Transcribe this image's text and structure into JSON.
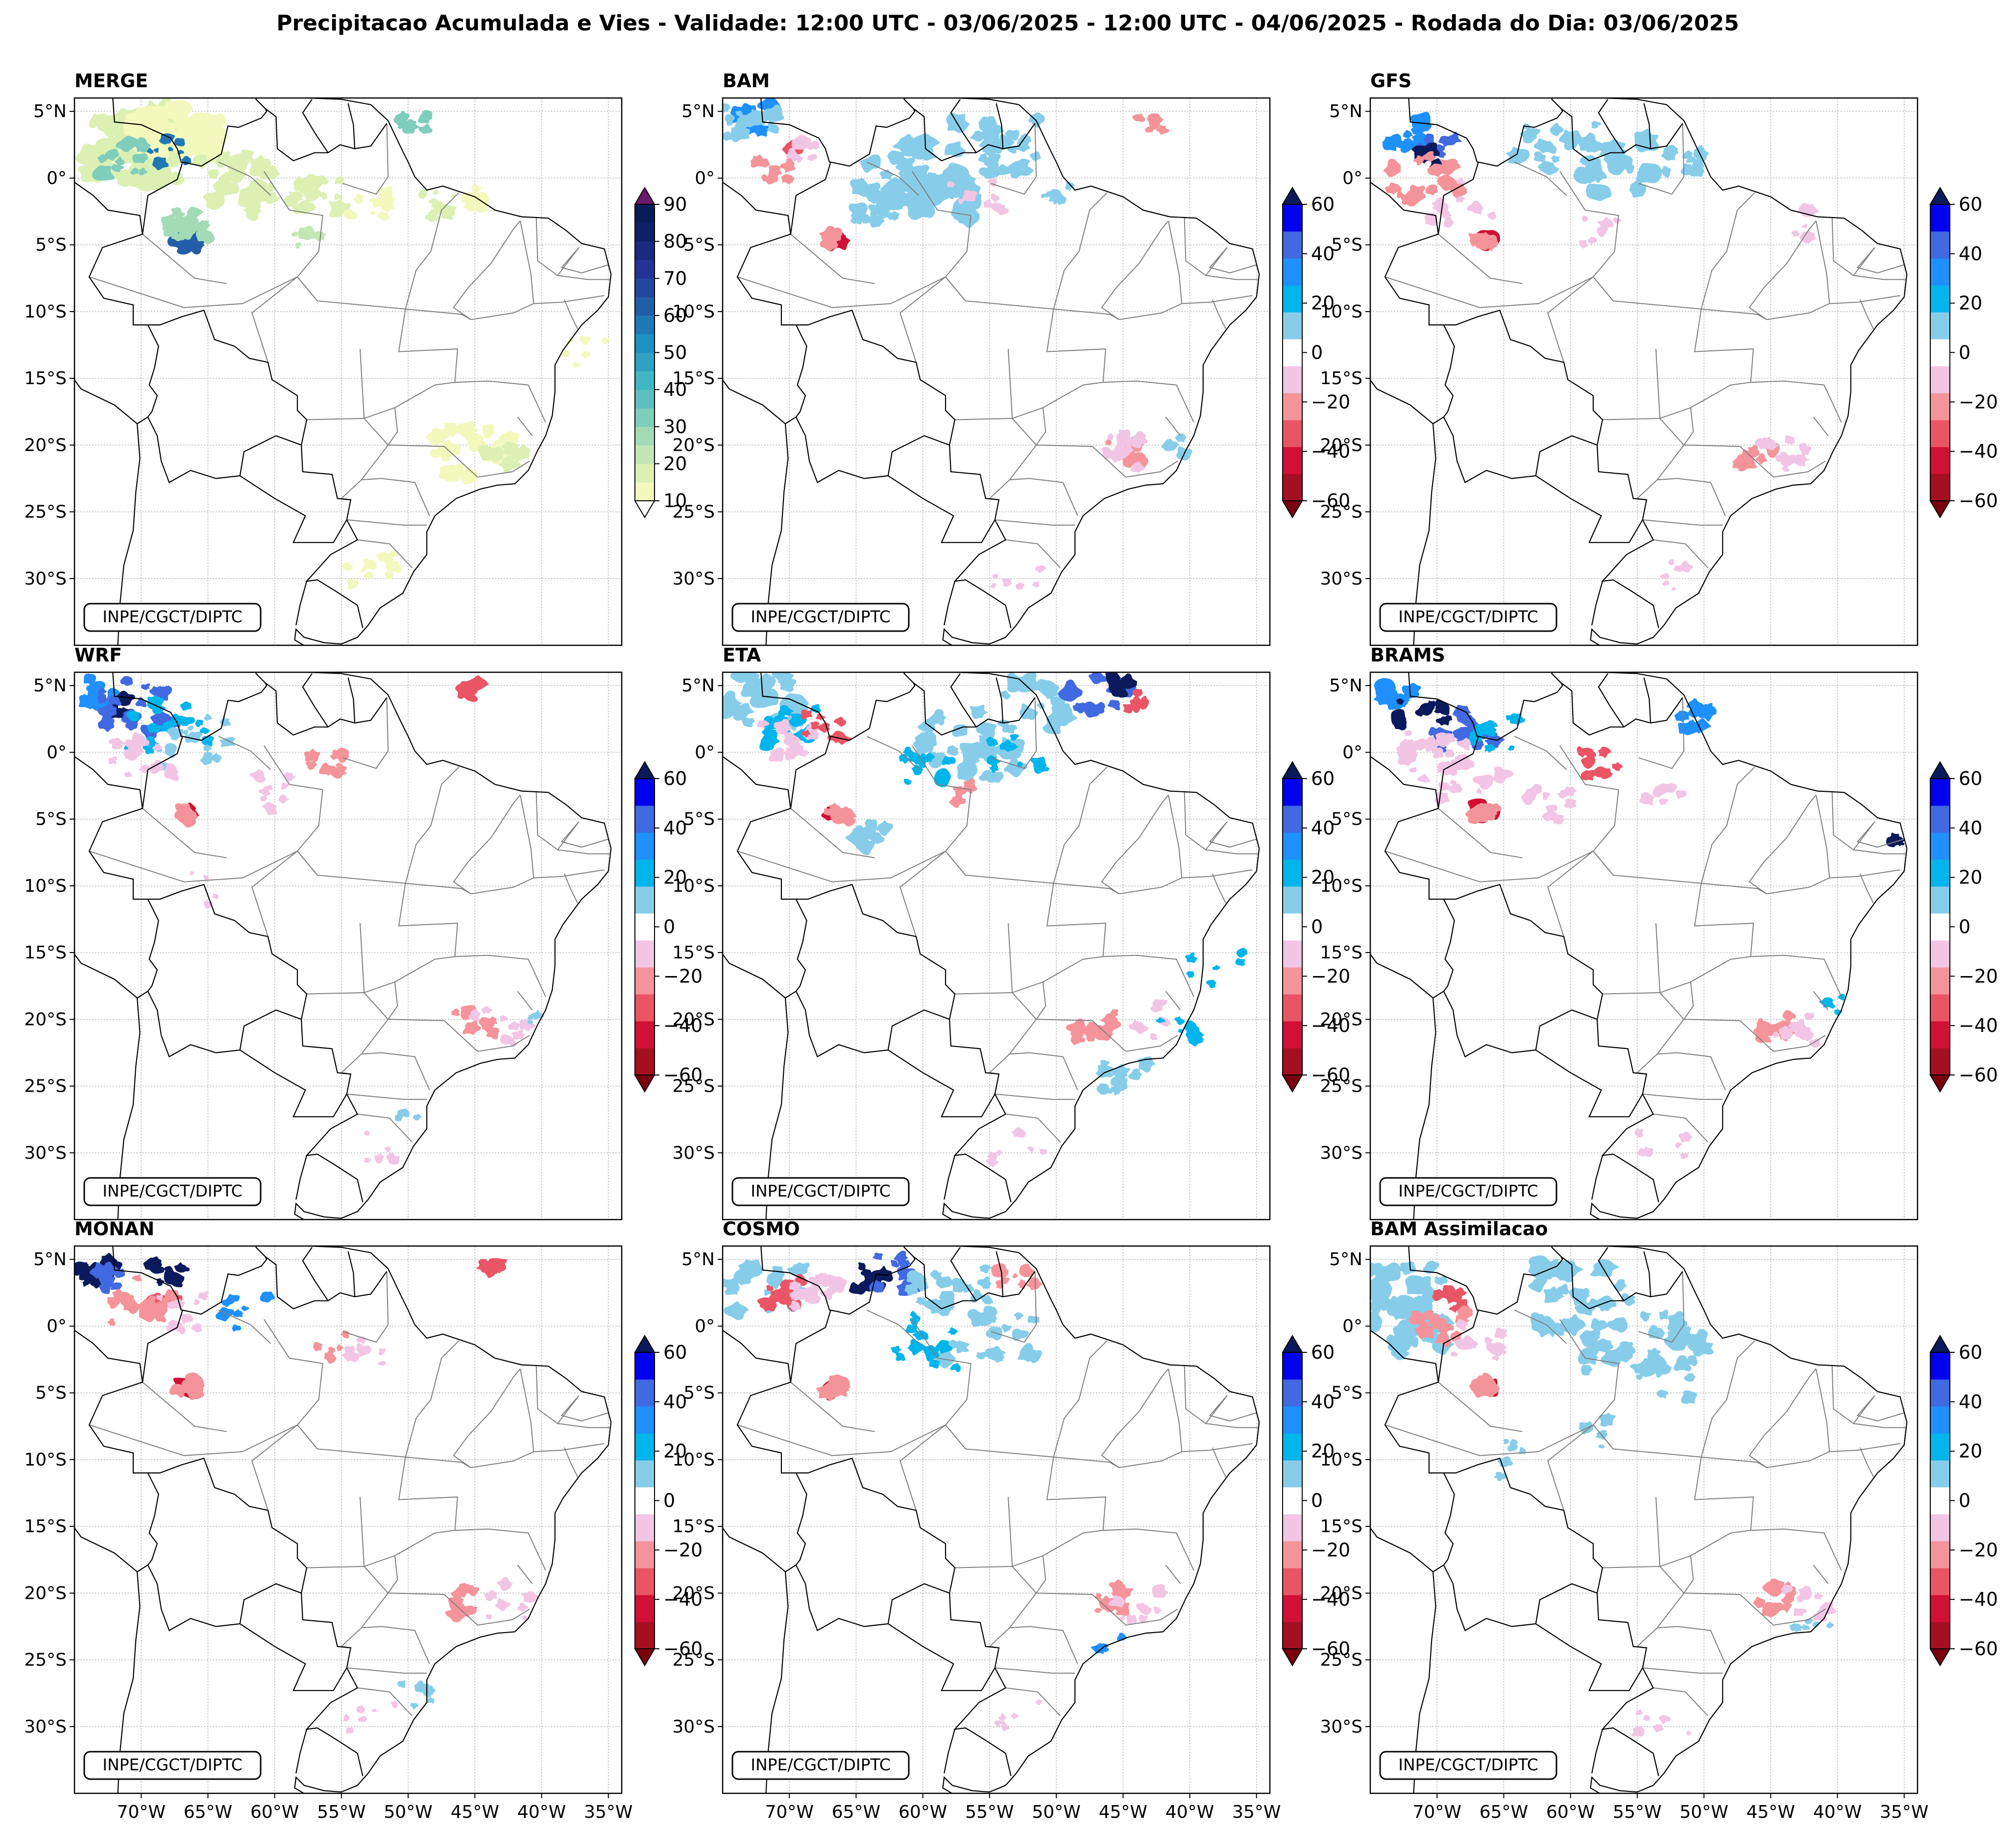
{
  "figure": {
    "title": "Precipitacao Acumulada e Vies - Validade: 12:00 UTC - 03/06/2025 - 12:00 UTC - 04/06/2025 - Rodada do Dia: 03/06/2025",
    "credit": "INPE/CGCT/DIPTC"
  },
  "axes": {
    "lat_ticks": [
      "5°N",
      "0°",
      "5°S",
      "10°S",
      "15°S",
      "20°S",
      "25°S",
      "30°S"
    ],
    "lat_values": [
      5,
      0,
      -5,
      -10,
      -15,
      -20,
      -25,
      -30
    ],
    "lon_ticks": [
      "70°W",
      "65°W",
      "60°W",
      "55°W",
      "50°W",
      "45°W",
      "40°W",
      "35°W"
    ],
    "lon_values": [
      -70,
      -65,
      -60,
      -55,
      -50,
      -45,
      -40,
      -35
    ],
    "lon_range": [
      -75,
      -34
    ],
    "lat_range": [
      -35,
      6
    ]
  },
  "colorbars": {
    "precip": {
      "ticks": [
        "90",
        "80",
        "70",
        "60",
        "50",
        "40",
        "30",
        "20",
        "10"
      ],
      "levels": [
        10,
        15,
        20,
        25,
        30,
        35,
        40,
        45,
        50,
        55,
        60,
        65,
        70,
        75,
        80,
        85,
        90
      ],
      "colors": [
        "#f3f8bd",
        "#dbf0b2",
        "#c2e6b4",
        "#a3dbb7",
        "#7fcdbb",
        "#5fbfc0",
        "#41b6c4",
        "#2fa1c1",
        "#1d91c0",
        "#2078b4",
        "#225ea8",
        "#24479e",
        "#253494",
        "#1a2a7f",
        "#0f2167",
        "#081d58"
      ],
      "under_color": "#ffffff",
      "over_color": "#6a1b6e"
    },
    "bias": {
      "ticks": [
        "60",
        "40",
        "20",
        "0",
        "−20",
        "−40",
        "−60"
      ],
      "levels": [
        -60,
        -50,
        -40,
        -30,
        -20,
        -10,
        10,
        20,
        30,
        40,
        50,
        60
      ],
      "colors": [
        "#a50f22",
        "#d01034",
        "#ea5566",
        "#f4949a",
        "#f2c5e5",
        "#ffffff",
        "#87cdea",
        "#00b4ec",
        "#1e90ff",
        "#4169e1",
        "#0000ee"
      ],
      "under_color": "#7a0010",
      "over_color": "#0b1a5c"
    }
  },
  "panels": [
    {
      "label": "MERGE",
      "kind": "precip"
    },
    {
      "label": "BAM",
      "kind": "bias"
    },
    {
      "label": "GFS",
      "kind": "bias"
    },
    {
      "label": "WRF",
      "kind": "bias"
    },
    {
      "label": "ETA",
      "kind": "bias"
    },
    {
      "label": "BRAMS",
      "kind": "bias"
    },
    {
      "label": "MONAN",
      "kind": "bias"
    },
    {
      "label": "COSMO",
      "kind": "bias"
    },
    {
      "label": "BAM Assimilacao",
      "kind": "bias"
    }
  ],
  "palette": {
    "coast": "#000000",
    "border": "#000000",
    "state": "#7f7f7f",
    "grid": "#bdbdbd",
    "frame": "#000000",
    "light_blue": "#87cdea",
    "sky": "#00b4ec",
    "dodger": "#1e90ff",
    "royal": "#4169e1",
    "navy": "#0b1a5c",
    "pink": "#f2c5e5",
    "salmon": "#f4949a",
    "red": "#ea5566",
    "crimson": "#d01034",
    "dark_red": "#a50f22"
  }
}
